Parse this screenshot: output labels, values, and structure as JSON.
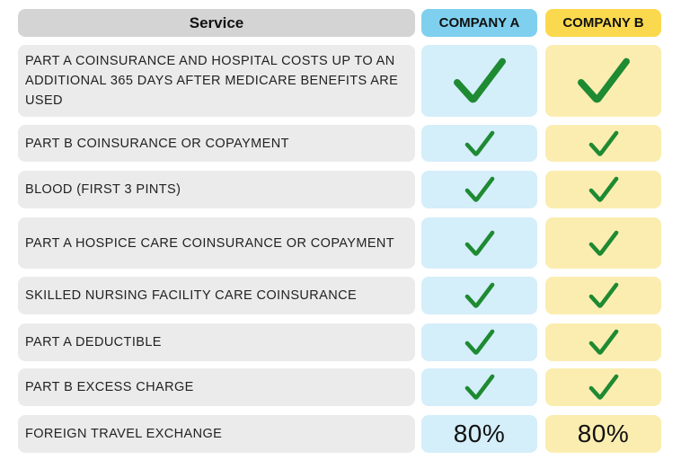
{
  "header": {
    "service": "Service",
    "company_a": "COMPANY A",
    "company_b": "COMPANY B"
  },
  "rows": [
    {
      "service": "PART A COINSURANCE AND HOSPITAL COSTS UP TO AN ADDITIONAL 365 DAYS AFTER MEDICARE BENEFITS ARE USED",
      "a": "check-icon",
      "b": "check-icon"
    },
    {
      "service": "PART B COINSURANCE OR COPAYMENT",
      "a": "check-icon",
      "b": "check-icon"
    },
    {
      "service": "BLOOD (FIRST 3 PINTS)",
      "a": "check-icon",
      "b": "check-icon"
    },
    {
      "service": "PART A HOSPICE CARE COINSURANCE OR COPAYMENT",
      "a": "check-icon",
      "b": "check-icon"
    },
    {
      "service": "SKILLED NURSING FACILITY CARE COINSURANCE",
      "a": "check-icon",
      "b": "check-icon"
    },
    {
      "service": "PART A DEDUCTIBLE",
      "a": "check-icon",
      "b": "check-icon"
    },
    {
      "service": "PART  B EXCESS CHARGE",
      "a": "check-icon",
      "b": "check-icon"
    },
    {
      "service": "FOREIGN TRAVEL EXCHANGE",
      "a": "80%",
      "b": "80%"
    }
  ],
  "colors": {
    "service_header": "#d4d4d4",
    "company_a_header": "#7fd0ef",
    "company_b_header": "#fad94e",
    "company_a_cell": "#d4eefa",
    "company_b_cell": "#fbedb0",
    "check": "#1e8a32"
  }
}
